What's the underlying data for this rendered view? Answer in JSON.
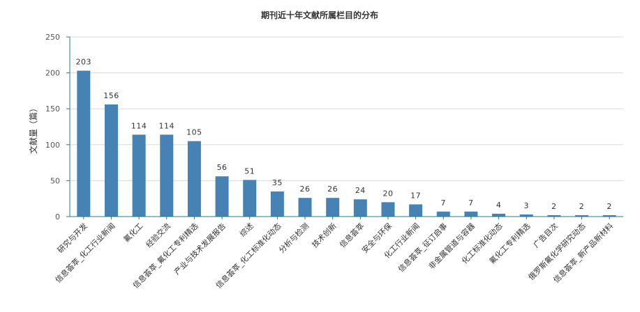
{
  "chart_data": {
    "type": "bar",
    "title": "期刊近十年文献所属栏目的分布",
    "xlabel": "",
    "ylabel": "文献量（篇）",
    "ylim": [
      0,
      250
    ],
    "yticks": [
      0,
      50,
      100,
      150,
      200,
      250
    ],
    "grid": true,
    "legend": "none",
    "categories": [
      "研究与开发",
      "信息荟萃_化工行业新闻",
      "氟化工",
      "经验交流",
      "信息荟萃_氟化工专利精选",
      "产业与技术发展报告",
      "综述",
      "信息荟萃_化工标准化动态",
      "分析与检测",
      "技术创新",
      "信息荟萃",
      "安全与环保",
      "化工行业新闻",
      "信息荟萃_征订启事",
      "非金属管道与容器",
      "化工标准化动态",
      "氟化工专利精选",
      "广告目次",
      "俄罗斯氟化学研究动态",
      "信息荟萃_新产品新材料"
    ],
    "values": [
      203,
      156,
      114,
      114,
      105,
      56,
      51,
      35,
      26,
      26,
      24,
      20,
      17,
      7,
      7,
      4,
      3,
      2,
      2,
      2
    ],
    "bar_color": "#4682b4"
  }
}
